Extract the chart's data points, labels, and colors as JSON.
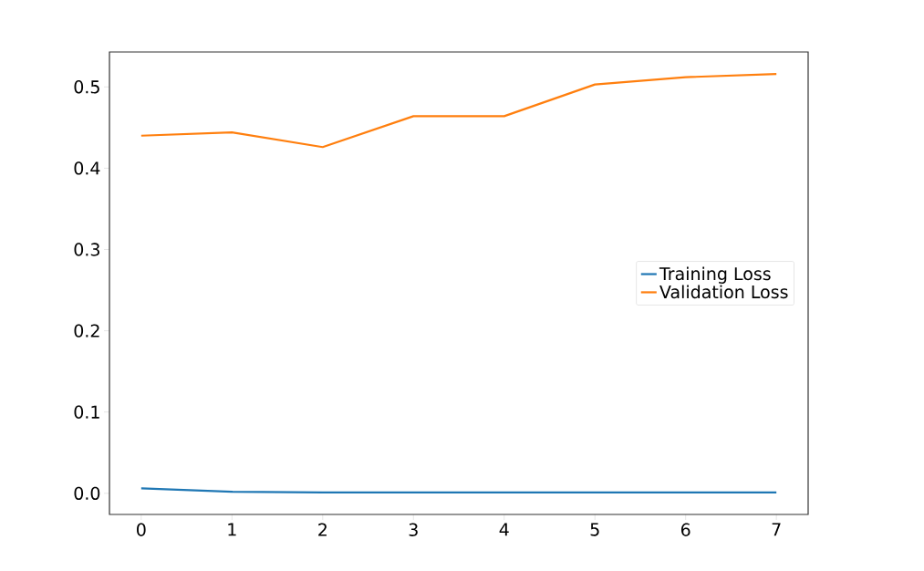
{
  "chart_data": {
    "type": "line",
    "x": [
      0,
      1,
      2,
      3,
      4,
      5,
      6,
      7
    ],
    "series": [
      {
        "name": "Training Loss",
        "color": "#1f77b4",
        "values": [
          0.006,
          0.002,
          0.001,
          0.001,
          0.001,
          0.001,
          0.001,
          0.001
        ]
      },
      {
        "name": "Validation Loss",
        "color": "#ff7f0e",
        "values": [
          0.44,
          0.444,
          0.426,
          0.464,
          0.464,
          0.503,
          0.512,
          0.516
        ]
      }
    ],
    "xlim": [
      -0.35,
      7.35
    ],
    "ylim": [
      -0.026,
      0.543
    ],
    "xticks": [
      0,
      1,
      2,
      3,
      4,
      5,
      6,
      7
    ],
    "yticks": [
      {
        "value": 0,
        "label": "0.0"
      },
      {
        "value": 0.1,
        "label": "0.1"
      },
      {
        "value": 0.2,
        "label": "0.2"
      },
      {
        "value": 0.3,
        "label": "0.3"
      },
      {
        "value": 0.4,
        "label": "0.4"
      },
      {
        "value": 0.5,
        "label": "0.5"
      }
    ],
    "legend": "right",
    "grid": false,
    "marker": "none",
    "line_style": "solid"
  }
}
